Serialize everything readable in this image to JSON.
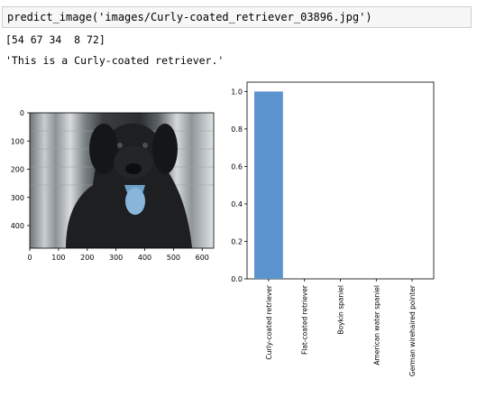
{
  "cell": {
    "code": "predict_image('images/Curly-coated_retriever_03896.jpg')"
  },
  "output": {
    "array": "[54 67 34  8 72]",
    "message": "'This is a Curly-coated retriever.'"
  },
  "image_axes": {
    "x_ticks": [
      "0",
      "100",
      "200",
      "300",
      "400",
      "500",
      "600"
    ],
    "y_ticks": [
      "0",
      "100",
      "200",
      "300",
      "400"
    ]
  },
  "chart_data": {
    "type": "bar",
    "categories": [
      "Curly-coated retriever",
      "Flat-coated retriever",
      "Boykin spaniel",
      "American water spaniel",
      "German wirehaired pointer"
    ],
    "values": [
      1.0,
      0.0,
      0.0,
      0.0,
      0.0
    ],
    "ylim": [
      0,
      1.05
    ],
    "y_ticks": [
      "0.0",
      "0.2",
      "0.4",
      "0.6",
      "0.8",
      "1.0"
    ],
    "bar_color": "#5b93cf",
    "grid": false
  }
}
